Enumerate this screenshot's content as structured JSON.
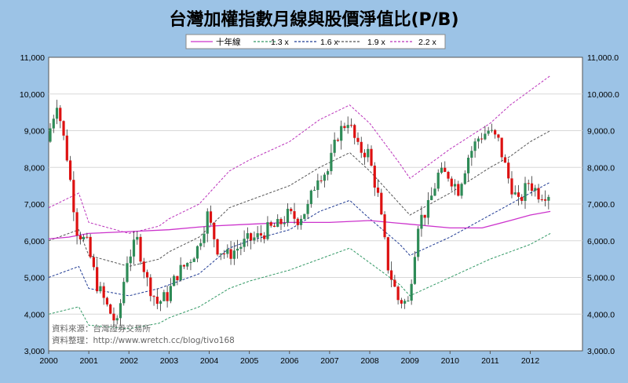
{
  "chart_data": {
    "type": "candlestick-line",
    "title": "台灣加權指數月線與股價淨值比(P/B)",
    "legend": [
      {
        "name": "十年線",
        "color": "#cc33cc",
        "dash": ""
      },
      {
        "name": "1.3 x",
        "color": "#339966",
        "dash": "3,2"
      },
      {
        "name": "1.6 x",
        "color": "#1f3a93",
        "dash": "3,2"
      },
      {
        "name": "1.9 x",
        "color": "#555555",
        "dash": "3,2"
      },
      {
        "name": "2.2 x",
        "color": "#bb33bb",
        "dash": "3,2"
      }
    ],
    "x_ticks": [
      "2000",
      "2001",
      "2002",
      "2003",
      "2004",
      "2005",
      "2006",
      "2007",
      "2008",
      "2009",
      "2010",
      "2011",
      "2012"
    ],
    "x_range": [
      2000.0,
      2013.3
    ],
    "ylim": [
      3000,
      11000
    ],
    "left_ticks": [
      "3,000",
      "4,000",
      "5,000",
      "6,000",
      "7,000",
      "8,000",
      "9,000",
      "10,000",
      "11,000"
    ],
    "right_ticks": [
      "3,000.0",
      "4,000.0",
      "5,000.0",
      "6,000.0",
      "7,000.0",
      "8,000.0",
      "9,000.0",
      "10,000.0",
      "11,000.0"
    ],
    "grid": true,
    "legend_position": "top",
    "up_color": "#2e8b57",
    "down_color": "#dd1111",
    "closes": [
      [
        2000.0,
        8700
      ],
      [
        2000.25,
        9800
      ],
      [
        2000.5,
        8300
      ],
      [
        2000.75,
        6300
      ],
      [
        2001.0,
        5900
      ],
      [
        2001.25,
        4800
      ],
      [
        2001.5,
        4200
      ],
      [
        2001.75,
        3700
      ],
      [
        2002.0,
        5500
      ],
      [
        2002.25,
        6000
      ],
      [
        2002.5,
        4900
      ],
      [
        2002.75,
        4300
      ],
      [
        2003.0,
        4500
      ],
      [
        2003.25,
        5100
      ],
      [
        2003.5,
        5400
      ],
      [
        2003.75,
        5800
      ],
      [
        2004.0,
        6700
      ],
      [
        2004.25,
        5800
      ],
      [
        2004.5,
        5600
      ],
      [
        2004.75,
        5800
      ],
      [
        2005.0,
        6000
      ],
      [
        2005.25,
        6100
      ],
      [
        2005.5,
        6300
      ],
      [
        2005.75,
        6400
      ],
      [
        2006.0,
        6700
      ],
      [
        2006.25,
        6600
      ],
      [
        2006.5,
        6900
      ],
      [
        2006.75,
        7800
      ],
      [
        2007.0,
        7900
      ],
      [
        2007.25,
        8900
      ],
      [
        2007.5,
        9300
      ],
      [
        2007.75,
        8500
      ],
      [
        2008.0,
        8400
      ],
      [
        2008.25,
        7200
      ],
      [
        2008.5,
        5300
      ],
      [
        2008.75,
        4400
      ],
      [
        2009.0,
        4300
      ],
      [
        2009.25,
        6500
      ],
      [
        2009.5,
        6900
      ],
      [
        2009.75,
        7800
      ],
      [
        2010.0,
        7800
      ],
      [
        2010.25,
        7400
      ],
      [
        2010.5,
        8300
      ],
      [
        2010.75,
        8800
      ],
      [
        2011.0,
        9000
      ],
      [
        2011.25,
        8700
      ],
      [
        2011.5,
        7700
      ],
      [
        2011.75,
        7000
      ],
      [
        2012.0,
        7600
      ],
      [
        2012.25,
        7300
      ],
      [
        2012.5,
        7300
      ]
    ],
    "ten_year_line": [
      [
        2000.0,
        6050
      ],
      [
        2000.5,
        6100
      ],
      [
        2001.0,
        6200
      ],
      [
        2002.0,
        6250
      ],
      [
        2003.0,
        6300
      ],
      [
        2004.0,
        6400
      ],
      [
        2005.0,
        6450
      ],
      [
        2006.0,
        6500
      ],
      [
        2007.0,
        6500
      ],
      [
        2008.0,
        6550
      ],
      [
        2009.0,
        6450
      ],
      [
        2010.0,
        6350
      ],
      [
        2010.8,
        6350
      ],
      [
        2011.5,
        6550
      ],
      [
        2012.0,
        6700
      ],
      [
        2012.5,
        6800
      ]
    ],
    "bands": {
      "1.3 x": [
        [
          2000.0,
          4000
        ],
        [
          2000.75,
          4200
        ],
        [
          2001.0,
          3700
        ],
        [
          2002.0,
          3600
        ],
        [
          2002.75,
          3750
        ],
        [
          2003.0,
          3900
        ],
        [
          2003.75,
          4200
        ],
        [
          2004.5,
          4700
        ],
        [
          2005.0,
          4900
        ],
        [
          2006.0,
          5200
        ],
        [
          2006.75,
          5500
        ],
        [
          2007.5,
          5800
        ],
        [
          2008.0,
          5400
        ],
        [
          2008.75,
          4800
        ],
        [
          2009.0,
          4500
        ],
        [
          2010.0,
          5000
        ],
        [
          2011.0,
          5500
        ],
        [
          2011.5,
          5700
        ],
        [
          2012.0,
          5900
        ],
        [
          2012.5,
          6200
        ]
      ],
      "1.6 x": [
        [
          2000.0,
          5000
        ],
        [
          2000.75,
          5300
        ],
        [
          2001.0,
          4700
        ],
        [
          2002.0,
          4500
        ],
        [
          2002.75,
          4700
        ],
        [
          2003.0,
          4800
        ],
        [
          2003.75,
          5100
        ],
        [
          2004.5,
          5800
        ],
        [
          2005.0,
          6000
        ],
        [
          2006.0,
          6300
        ],
        [
          2006.75,
          6800
        ],
        [
          2007.5,
          7100
        ],
        [
          2008.0,
          6600
        ],
        [
          2008.75,
          5900
        ],
        [
          2009.0,
          5600
        ],
        [
          2010.0,
          6100
        ],
        [
          2011.0,
          6700
        ],
        [
          2011.5,
          7000
        ],
        [
          2012.0,
          7300
        ],
        [
          2012.5,
          7600
        ]
      ],
      "1.9 x": [
        [
          2000.0,
          6000
        ],
        [
          2000.75,
          6300
        ],
        [
          2001.0,
          5600
        ],
        [
          2002.0,
          5300
        ],
        [
          2002.75,
          5500
        ],
        [
          2003.0,
          5700
        ],
        [
          2003.75,
          6100
        ],
        [
          2004.5,
          6900
        ],
        [
          2005.0,
          7100
        ],
        [
          2006.0,
          7500
        ],
        [
          2006.75,
          8000
        ],
        [
          2007.5,
          8400
        ],
        [
          2008.0,
          7900
        ],
        [
          2008.75,
          7000
        ],
        [
          2009.0,
          6700
        ],
        [
          2010.0,
          7300
        ],
        [
          2011.0,
          8000
        ],
        [
          2011.5,
          8300
        ],
        [
          2012.0,
          8700
        ],
        [
          2012.5,
          9000
        ]
      ],
      "2.2 x": [
        [
          2000.0,
          6900
        ],
        [
          2000.75,
          7300
        ],
        [
          2001.0,
          6500
        ],
        [
          2002.0,
          6200
        ],
        [
          2002.75,
          6400
        ],
        [
          2003.0,
          6600
        ],
        [
          2003.75,
          7000
        ],
        [
          2004.5,
          7900
        ],
        [
          2005.0,
          8200
        ],
        [
          2006.0,
          8700
        ],
        [
          2006.75,
          9300
        ],
        [
          2007.5,
          9700
        ],
        [
          2008.0,
          9200
        ],
        [
          2008.75,
          8100
        ],
        [
          2009.0,
          7700
        ],
        [
          2010.0,
          8500
        ],
        [
          2011.0,
          9200
        ],
        [
          2011.5,
          9700
        ],
        [
          2012.0,
          10100
        ],
        [
          2012.5,
          10500
        ]
      ]
    },
    "annotations": [
      "資料來源：台灣證券交易所",
      "資料整理：http://www.wretch.cc/blog/tivo168"
    ]
  }
}
